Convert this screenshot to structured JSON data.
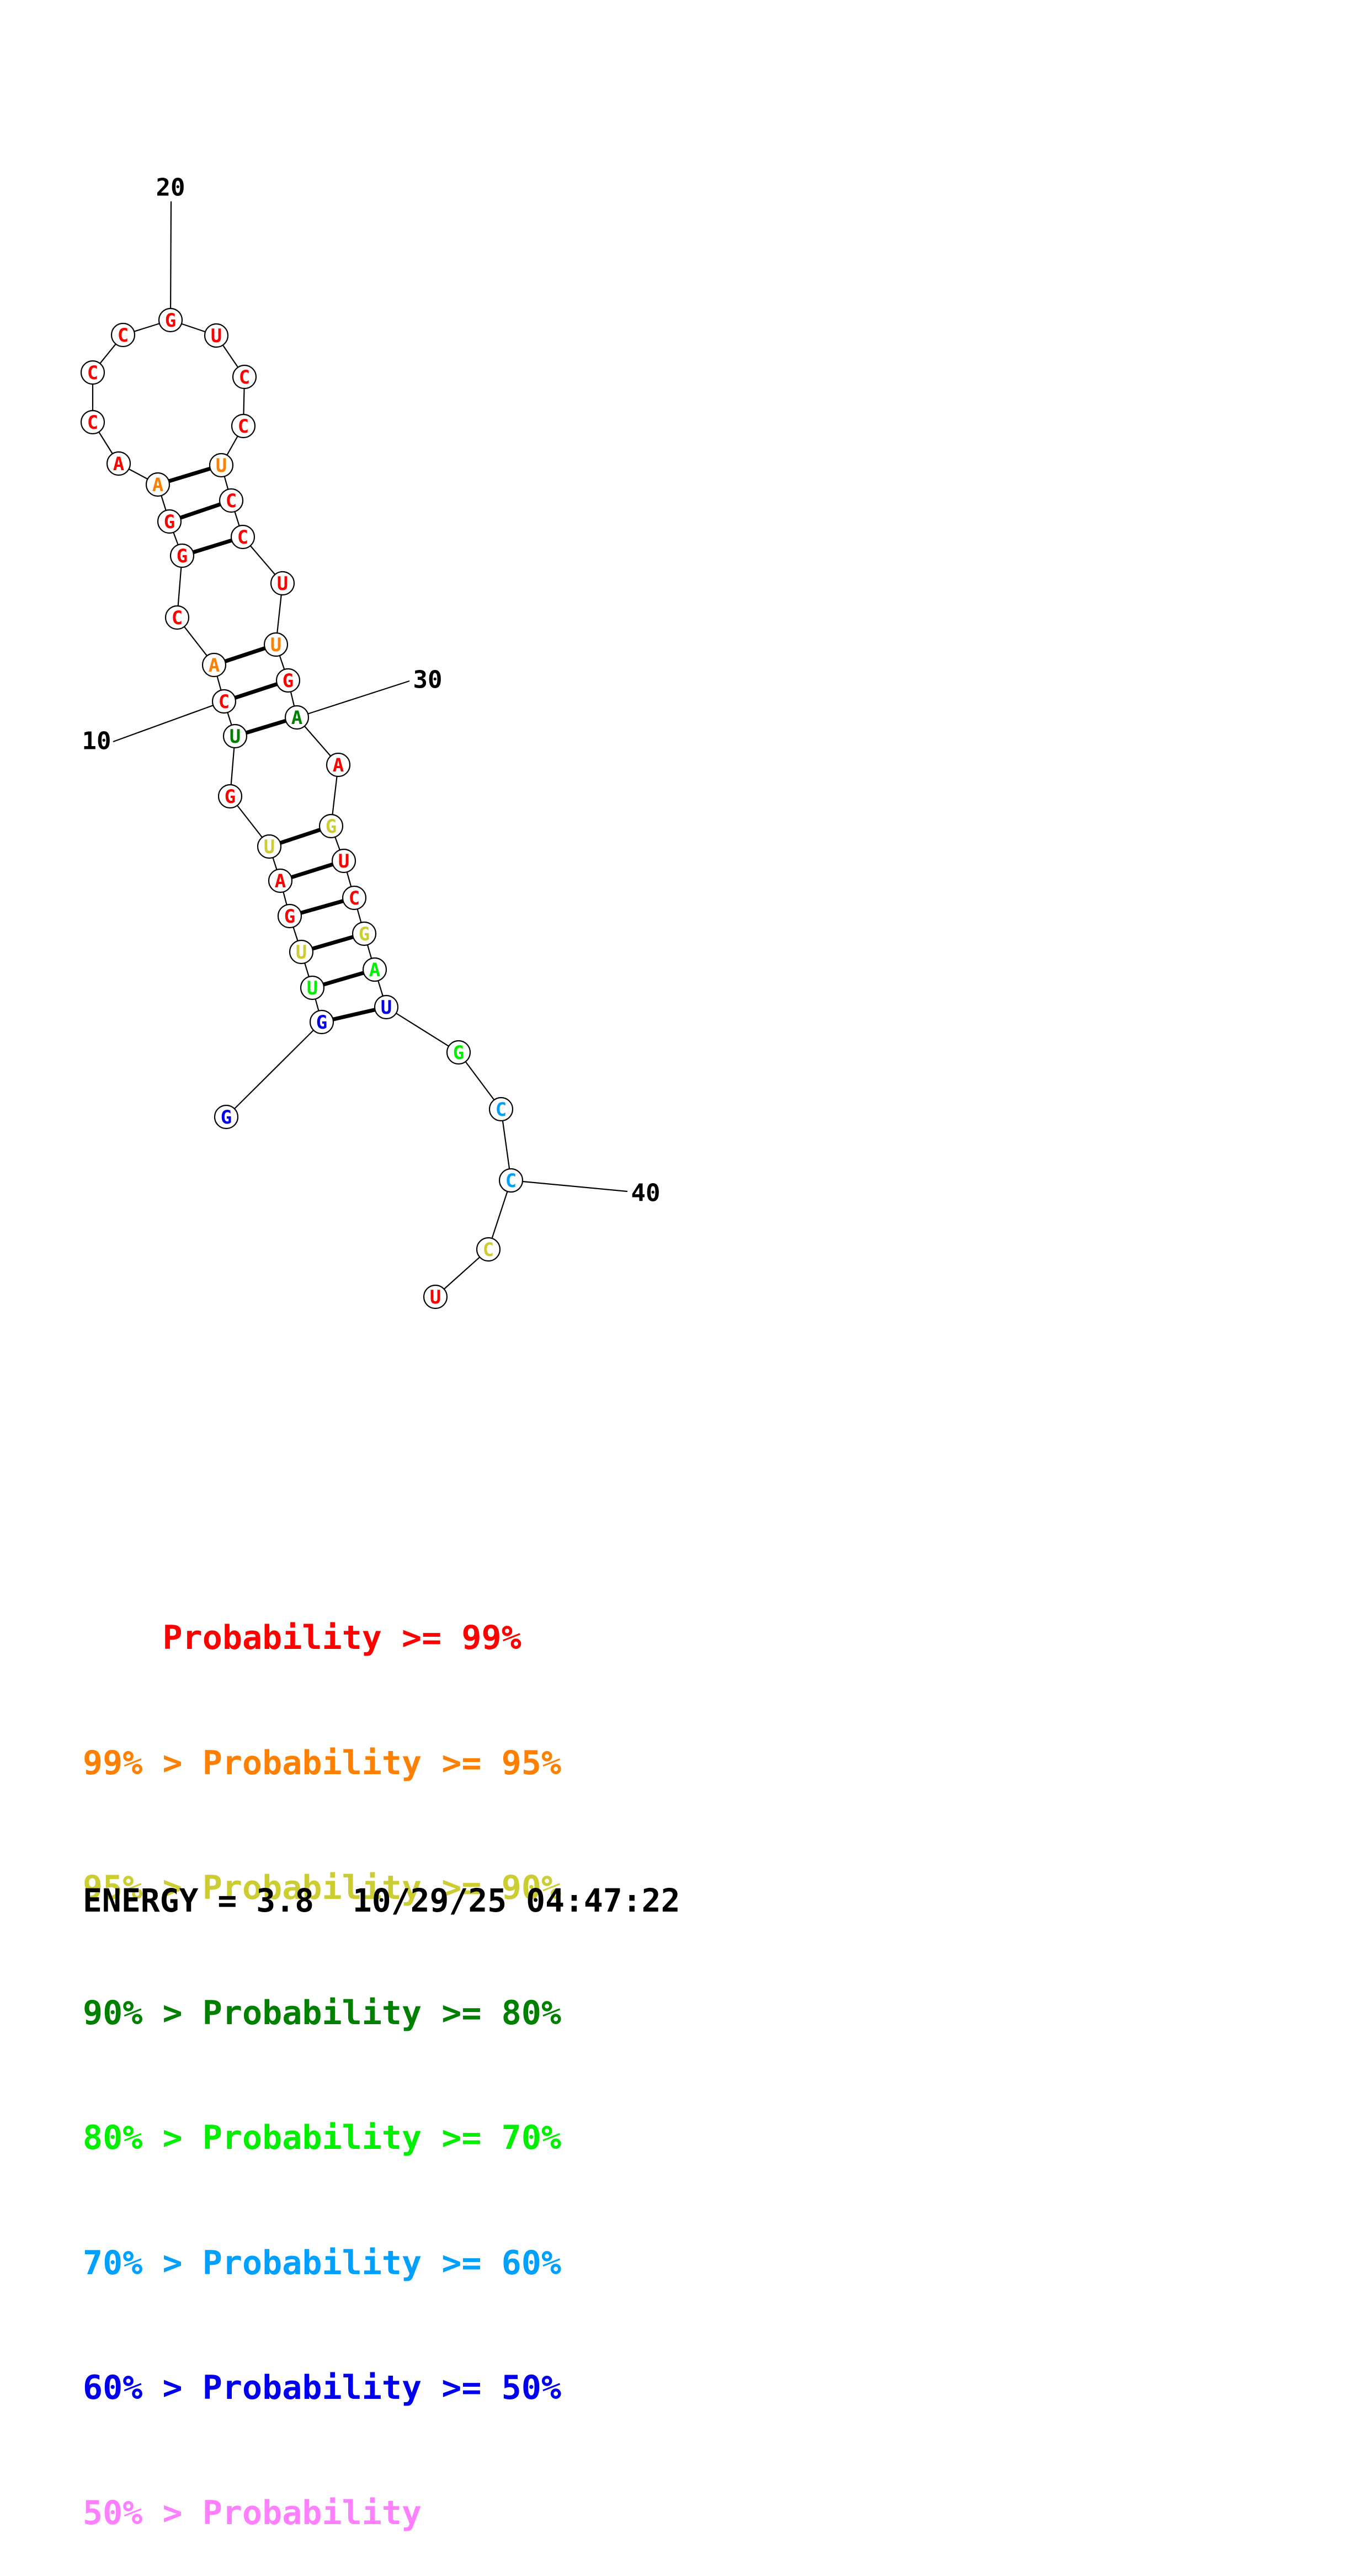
{
  "colors": {
    "p99": "#ff0000",
    "p95": "#ff7f00",
    "p90": "#cccc33",
    "p80": "#008000",
    "p70": "#00ee00",
    "p60": "#00a0ff",
    "p50": "#0000ee",
    "plow": "#ff80ff"
  },
  "nucleotides": [
    {
      "i": 1,
      "base": "G",
      "prob": "p50"
    },
    {
      "i": 2,
      "base": "G",
      "prob": "p50"
    },
    {
      "i": 3,
      "base": "U",
      "prob": "p70"
    },
    {
      "i": 4,
      "base": "U",
      "prob": "p90"
    },
    {
      "i": 5,
      "base": "G",
      "prob": "p99"
    },
    {
      "i": 6,
      "base": "A",
      "prob": "p99"
    },
    {
      "i": 7,
      "base": "U",
      "prob": "p90"
    },
    {
      "i": 8,
      "base": "G",
      "prob": "p99"
    },
    {
      "i": 9,
      "base": "U",
      "prob": "p80"
    },
    {
      "i": 10,
      "base": "C",
      "prob": "p99"
    },
    {
      "i": 11,
      "base": "A",
      "prob": "p95"
    },
    {
      "i": 12,
      "base": "C",
      "prob": "p99"
    },
    {
      "i": 13,
      "base": "G",
      "prob": "p99"
    },
    {
      "i": 14,
      "base": "G",
      "prob": "p99"
    },
    {
      "i": 15,
      "base": "A",
      "prob": "p95"
    },
    {
      "i": 16,
      "base": "A",
      "prob": "p99"
    },
    {
      "i": 17,
      "base": "C",
      "prob": "p99"
    },
    {
      "i": 18,
      "base": "C",
      "prob": "p99"
    },
    {
      "i": 19,
      "base": "C",
      "prob": "p99"
    },
    {
      "i": 20,
      "base": "G",
      "prob": "p99"
    },
    {
      "i": 21,
      "base": "U",
      "prob": "p99"
    },
    {
      "i": 22,
      "base": "C",
      "prob": "p99"
    },
    {
      "i": 23,
      "base": "C",
      "prob": "p99"
    },
    {
      "i": 24,
      "base": "U",
      "prob": "p95"
    },
    {
      "i": 25,
      "base": "C",
      "prob": "p99"
    },
    {
      "i": 26,
      "base": "C",
      "prob": "p99"
    },
    {
      "i": 27,
      "base": "U",
      "prob": "p99"
    },
    {
      "i": 28,
      "base": "U",
      "prob": "p95"
    },
    {
      "i": 29,
      "base": "G",
      "prob": "p99"
    },
    {
      "i": 30,
      "base": "A",
      "prob": "p80"
    },
    {
      "i": 31,
      "base": "A",
      "prob": "p99"
    },
    {
      "i": 32,
      "base": "G",
      "prob": "p90"
    },
    {
      "i": 33,
      "base": "U",
      "prob": "p99"
    },
    {
      "i": 34,
      "base": "C",
      "prob": "p99"
    },
    {
      "i": 35,
      "base": "G",
      "prob": "p90"
    },
    {
      "i": 36,
      "base": "A",
      "prob": "p70"
    },
    {
      "i": 37,
      "base": "U",
      "prob": "p50"
    },
    {
      "i": 38,
      "base": "G",
      "prob": "p70"
    },
    {
      "i": 39,
      "base": "C",
      "prob": "p60"
    },
    {
      "i": 40,
      "base": "C",
      "prob": "p60"
    },
    {
      "i": 41,
      "base": "C",
      "prob": "p90"
    },
    {
      "i": 42,
      "base": "U",
      "prob": "p99"
    }
  ],
  "pairs": [
    [
      2,
      37
    ],
    [
      3,
      36
    ],
    [
      4,
      35
    ],
    [
      5,
      34
    ],
    [
      6,
      33
    ],
    [
      7,
      32
    ],
    [
      9,
      30
    ],
    [
      10,
      29
    ],
    [
      11,
      28
    ],
    [
      13,
      26
    ],
    [
      14,
      25
    ],
    [
      15,
      24
    ]
  ],
  "ticks": [
    {
      "i": 10,
      "label": "10"
    },
    {
      "i": 20,
      "label": "20"
    },
    {
      "i": 30,
      "label": "30"
    },
    {
      "i": 40,
      "label": "40"
    }
  ],
  "legend": [
    {
      "prefix": "    ",
      "text": "Probability >= 99%",
      "prob": "p99"
    },
    {
      "prefix": "99% > ",
      "text": "Probability >= 95%",
      "prob": "p95"
    },
    {
      "prefix": "95% > ",
      "text": "Probability >= 90%",
      "prob": "p90"
    },
    {
      "prefix": "90% > ",
      "text": "Probability >= 80%",
      "prob": "p80"
    },
    {
      "prefix": "80% > ",
      "text": "Probability >= 70%",
      "prob": "p70"
    },
    {
      "prefix": "70% > ",
      "text": "Probability >= 60%",
      "prob": "p60"
    },
    {
      "prefix": "60% > ",
      "text": "Probability >= 50%",
      "prob": "p50"
    },
    {
      "prefix": "50% > ",
      "text": "Probability",
      "prob": "plow"
    }
  ],
  "footer": {
    "energy": "ENERGY = 3.8",
    "timestamp": "10/29/25 04:47:22"
  }
}
